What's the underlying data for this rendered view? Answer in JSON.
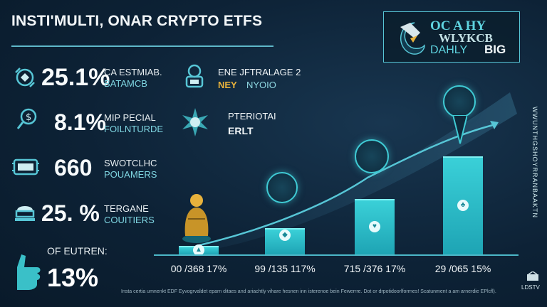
{
  "title": "INSTI'MULTI, ONAR CRYPTO ETFS",
  "logo": {
    "line1": "OC A HY",
    "line2": "WLYKCB",
    "line3a": "DAHLY",
    "line3b": "BIG"
  },
  "stats_left": [
    {
      "value": "25.1%",
      "label1": "CA ESTMIAB.",
      "label2": "BATAMCB",
      "icon": "shield-icon"
    },
    {
      "value": "8.1%",
      "label1": "MIP PECIAL",
      "label2": "FOILNTURDE",
      "icon": "magnifier-icon"
    },
    {
      "value": "660",
      "label1": "SWOTCLHC",
      "label2": "POUAMERS",
      "icon": "server-icon"
    },
    {
      "value": "25. %",
      "label1": "TERGANE",
      "label2": "COUITIERS",
      "icon": "bank-icon"
    }
  ],
  "stats_mid": [
    {
      "label1": "ENE  JFTRALAGE 2",
      "label2a": "NEY",
      "label2b": "NYOIO",
      "icon": "vault-icon"
    },
    {
      "label1": "PTERIOTAI",
      "label2": "ERLT",
      "icon": "star-badge-icon"
    }
  ],
  "bottom_stat": {
    "label": "OF EUTREN:",
    "value": "13%",
    "icon": "hand-icon"
  },
  "chart_data": {
    "type": "bar",
    "categories": [
      "00 /368 17%",
      "99 /135 117%",
      "715 /376 17%",
      "29 /065 15%"
    ],
    "values": [
      8,
      25,
      52,
      92
    ],
    "ylim": [
      0,
      100
    ],
    "trend": "increasing"
  },
  "right_vertical_text": "WWUNTHGSHOYRRANBAAKTN",
  "footnote": "Insta certia umnenkt EDF Eyvogrvaldet eparn ditaes and ariachtly vihare hesnen inn isterenoe bein Fewerrre. Dot or drpotidoorlforrnes! Scatunment a am arnerdie EPlcfl).",
  "corner_logo": "LDSTV",
  "colors": {
    "background": "#0d2236",
    "accent": "#3ad0d8",
    "highlight": "#e8b23c"
  }
}
